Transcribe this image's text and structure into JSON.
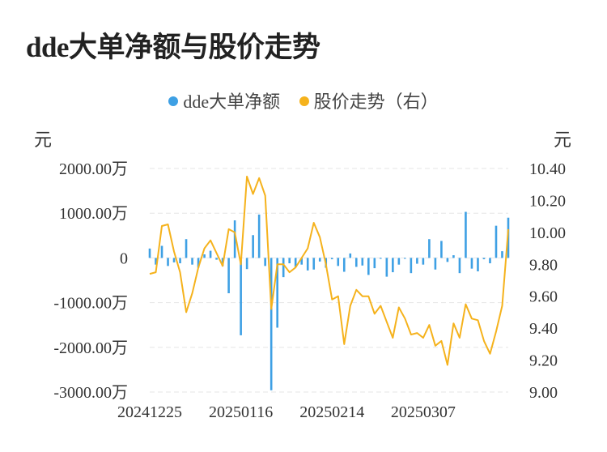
{
  "title": "dde大单净额与股价走势",
  "legend": [
    {
      "label": "dde大单净额",
      "color": "#3ea0e4"
    },
    {
      "label": "股价走势（右）",
      "color": "#f5b21c"
    }
  ],
  "left_unit": "元",
  "right_unit": "元",
  "chart_data": {
    "type": "bar",
    "title": "dde大单净额与股价走势",
    "x_tick_labels": [
      "20241225",
      "20250116",
      "20250214",
      "20250307"
    ],
    "x_tick_index": [
      0,
      15,
      30,
      45
    ],
    "left_axis": {
      "ticks": [
        "2000.00万",
        "1000.00万",
        "0",
        "-1000.00万",
        "-2000.00万",
        "-3000.00万"
      ],
      "min": -3000,
      "max": 2000,
      "unit": "万元"
    },
    "right_axis": {
      "ticks": [
        "10.40",
        "10.20",
        "10.00",
        "9.80",
        "9.60",
        "9.40",
        "9.20",
        "9.00"
      ],
      "min": 9.0,
      "max": 10.4
    },
    "grid": true,
    "legend_position": "top",
    "series": [
      {
        "name": "dde大单净额",
        "type": "bar",
        "axis": "left",
        "color": "#3ea0e4",
        "values": [
          210,
          -150,
          270,
          -180,
          -100,
          -120,
          420,
          -150,
          -220,
          80,
          160,
          -40,
          -180,
          -790,
          840,
          -1730,
          -250,
          510,
          970,
          -180,
          -2960,
          -1560,
          -430,
          -120,
          -200,
          -150,
          -280,
          -260,
          -80,
          -220,
          -30,
          -180,
          -310,
          100,
          -200,
          -170,
          -380,
          -230,
          -20,
          -420,
          -320,
          -150,
          -20,
          -340,
          -130,
          -150,
          420,
          -260,
          380,
          -90,
          60,
          -340,
          1030,
          -240,
          -300,
          -30,
          -120,
          720,
          150,
          900
        ]
      },
      {
        "name": "股价走势（右）",
        "type": "line",
        "axis": "right",
        "color": "#f5b21c",
        "values": [
          9.74,
          9.75,
          10.04,
          10.05,
          9.88,
          9.75,
          9.5,
          9.62,
          9.78,
          9.9,
          9.95,
          9.87,
          9.79,
          10.02,
          10.0,
          9.8,
          10.35,
          10.24,
          10.34,
          10.23,
          9.52,
          9.8,
          9.8,
          9.75,
          9.78,
          9.84,
          9.9,
          10.06,
          9.97,
          9.8,
          9.58,
          9.6,
          9.3,
          9.54,
          9.64,
          9.6,
          9.6,
          9.49,
          9.54,
          9.44,
          9.34,
          9.53,
          9.46,
          9.36,
          9.37,
          9.34,
          9.42,
          9.29,
          9.32,
          9.17,
          9.43,
          9.34,
          9.55,
          9.46,
          9.45,
          9.32,
          9.24,
          9.38,
          9.54,
          10.02
        ]
      }
    ]
  }
}
